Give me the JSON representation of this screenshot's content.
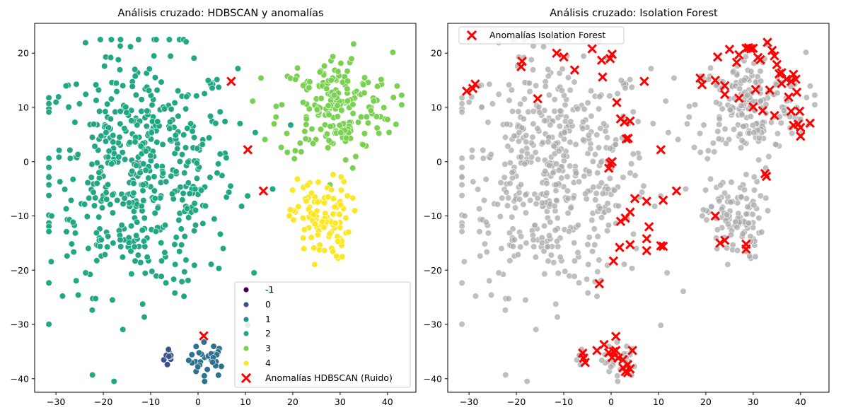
{
  "chart_data": [
    {
      "type": "scatter",
      "title": "Análisis cruzado: HDBSCAN y anomalías",
      "xlabel": "",
      "ylabel": "",
      "xlim": [
        -34.5,
        46
      ],
      "ylim": [
        -42.5,
        25.5
      ],
      "xticks": [
        "−30",
        "−20",
        "−10",
        "0",
        "10",
        "20",
        "30",
        "40"
      ],
      "xtick_values": [
        -30,
        -20,
        -10,
        0,
        10,
        20,
        30,
        40
      ],
      "yticks": [
        "20",
        "10",
        "0",
        "−10",
        "−20",
        "−30",
        "−40"
      ],
      "ytick_values": [
        20,
        10,
        0,
        -10,
        -20,
        -30,
        -40
      ],
      "grid": false,
      "legend_position": "lower-right",
      "legend": [
        {
          "label": "-1",
          "color": "#440154",
          "marker": "circle"
        },
        {
          "label": "0",
          "color": "#3b528b",
          "marker": "circle"
        },
        {
          "label": "1",
          "color": "#21918c",
          "marker": "circle"
        },
        {
          "label": "2",
          "color": "#21a784",
          "marker": "circle"
        },
        {
          "label": "3",
          "color": "#7ad151",
          "marker": "circle"
        },
        {
          "label": "4",
          "color": "#fde725",
          "marker": "circle"
        },
        {
          "label": "Anomalías HDBSCAN (Ruido)",
          "color": "#ff0000",
          "marker": "x"
        }
      ],
      "clusters": [
        {
          "name": "0",
          "color": "#3b528b",
          "center": [
            -6.0,
            -36.0
          ],
          "spread": [
            0.6,
            1.0
          ],
          "count": 10
        },
        {
          "name": "1",
          "color": "#2c728e",
          "center": [
            2.0,
            -36.5
          ],
          "spread": [
            2.0,
            1.6
          ],
          "count": 30
        },
        {
          "name": "2",
          "color": "#21a784",
          "center": [
            -12.0,
            -2.0
          ],
          "spread": [
            10.0,
            11.0
          ],
          "count": 520
        },
        {
          "name": "3",
          "color": "#7ad151",
          "center": [
            29.0,
            10.0
          ],
          "spread": [
            6.0,
            5.0
          ],
          "count": 200
        },
        {
          "name": "4",
          "color": "#fde725",
          "center": [
            26.0,
            -10.5
          ],
          "spread": [
            3.0,
            3.8
          ],
          "count": 110
        }
      ],
      "anomalies": {
        "name": "Anomalías HDBSCAN (Ruido)",
        "color": "#ff0000",
        "x": [
          7.0,
          10.5,
          13.8,
          1.2
        ],
        "y": [
          14.8,
          2.2,
          -5.4,
          -32.1
        ]
      }
    },
    {
      "type": "scatter",
      "title": "Análisis cruzado: Isolation Forest",
      "xlabel": "",
      "ylabel": "",
      "xlim": [
        -34.5,
        46
      ],
      "ylim": [
        -42.5,
        25.5
      ],
      "xticks": [
        "−30",
        "−20",
        "−10",
        "0",
        "10",
        "20",
        "30",
        "40"
      ],
      "xtick_values": [
        -30,
        -20,
        -10,
        0,
        10,
        20,
        30,
        40
      ],
      "yticks": [
        "20",
        "10",
        "0",
        "−10",
        "−20",
        "−30",
        "−40"
      ],
      "ytick_values": [
        20,
        10,
        0,
        -10,
        -20,
        -30,
        -40
      ],
      "grid": false,
      "legend_position": "top-left",
      "legend": [
        {
          "label": "Anomalías Isolation Forest",
          "color": "#ff0000",
          "marker": "x"
        }
      ],
      "points_color": "#a9a9a9",
      "anomalies": {
        "name": "Anomalías Isolation Forest",
        "color": "#ff0000",
        "x": [
          -30.5,
          -29.2,
          -28.7,
          -19.0,
          -18.8,
          -15.5,
          -11.5,
          -10.0,
          -7.7,
          -4.0,
          -2.0,
          -1.8,
          -0.2,
          0.2,
          1.2,
          2.0,
          2.8,
          4.0,
          7.0,
          10.5,
          13.8,
          -0.5,
          -0.2,
          0.2,
          3.2,
          3.6,
          5.0,
          7.5,
          11.0,
          4.0,
          3.0,
          2.0,
          8.0,
          7.5,
          10.5,
          11.0,
          4.0,
          7.5,
          1.8,
          0.5,
          -2.5,
          22.0,
          23.0,
          24.0,
          28.5,
          28.5,
          32.5,
          32.8,
          18.8,
          19.2,
          22.0,
          22.5,
          24.0,
          25.0,
          26.5,
          27.0,
          28.5,
          29.0,
          30.0,
          31.5,
          33.0,
          34.0,
          34.5,
          35.0,
          36.0,
          37.0,
          38.0,
          38.5,
          39.0,
          39.2,
          39.8,
          40.0,
          42.0,
          33.5,
          34.5,
          32.0,
          30.5,
          30.0,
          31.0,
          38.0,
          38.5,
          39.5,
          37.5,
          35.5,
          24.0,
          27.0,
          29.5,
          36.0,
          40.0,
          -6.0,
          -5.8,
          -5.5,
          -3.0,
          -1.5,
          -0.5,
          0.5,
          1.0,
          1.5,
          2.5,
          3.0,
          3.5,
          4.0,
          4.5,
          3.5,
          2.5,
          1.0,
          0.2
        ],
        "y": [
          13.0,
          13.5,
          14.3,
          17.5,
          18.5,
          11.6,
          20.0,
          19.3,
          16.9,
          20.8,
          18.7,
          15.6,
          19.0,
          19.8,
          10.9,
          7.9,
          7.3,
          7.5,
          14.8,
          2.2,
          -5.4,
          -1.2,
          -0.3,
          0.0,
          4.2,
          4.3,
          -6.8,
          -7.3,
          -7.1,
          -9.3,
          -10.4,
          -11.0,
          -12.0,
          -14.2,
          -15.5,
          -15.6,
          -15.3,
          -16.4,
          -15.8,
          -18.3,
          -22.5,
          -10.0,
          -15.0,
          -14.5,
          -15.2,
          -16.1,
          -2.2,
          -2.7,
          15.4,
          14.2,
          15.0,
          19.3,
          12.4,
          20.7,
          18.3,
          19.7,
          20.9,
          21.0,
          20.9,
          18.8,
          22.0,
          20.5,
          19.5,
          17.9,
          16.4,
          15.2,
          14.8,
          16.1,
          15.2,
          12.8,
          9.3,
          6.3,
          7.1,
          13.2,
          8.5,
          9.4,
          13.3,
          10.1,
          19.2,
          9.3,
          6.7,
          6.9,
          11.9,
          16.2,
          14.0,
          11.7,
          20.8,
          14.4,
          4.7,
          -35.3,
          -36.2,
          -37.0,
          -34.8,
          -33.7,
          -35.2,
          -35.0,
          -34.8,
          -36.2,
          -38.0,
          -38.7,
          -38.9,
          -38.2,
          -34.8,
          -37.4,
          -36.5,
          -32.2,
          -36.1
        ]
      }
    }
  ]
}
